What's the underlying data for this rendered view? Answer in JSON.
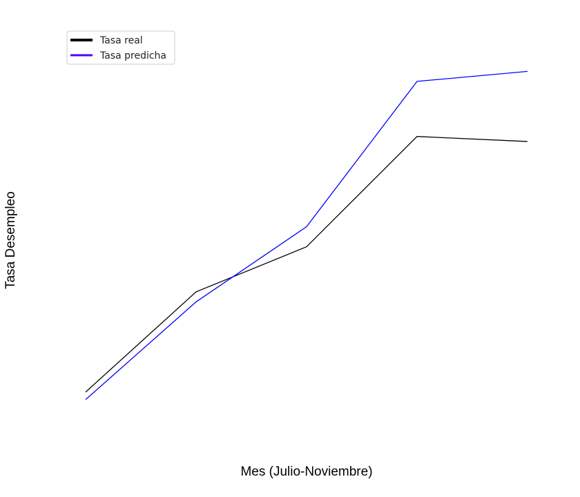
{
  "chart_data": {
    "type": "line",
    "title": "",
    "xlabel": "Mes (Julio-Noviembre)",
    "ylabel": "Tasa Desempleo",
    "categories": [
      "",
      "",
      "",
      "",
      ""
    ],
    "series": [
      {
        "name": "Tasa real",
        "color": "#000000",
        "values": [
          0.0,
          0.4,
          0.58,
          1.02,
          1.0
        ]
      },
      {
        "name": "Tasa predicha",
        "color": "#0000ff",
        "values": [
          -0.03,
          0.36,
          0.66,
          1.24,
          1.28
        ]
      }
    ],
    "ylim": [
      -0.2,
      1.45
    ],
    "grid": false,
    "legend": {
      "placement": "top-left",
      "marker_colors": [
        "#000000",
        "#5500ff"
      ]
    }
  }
}
